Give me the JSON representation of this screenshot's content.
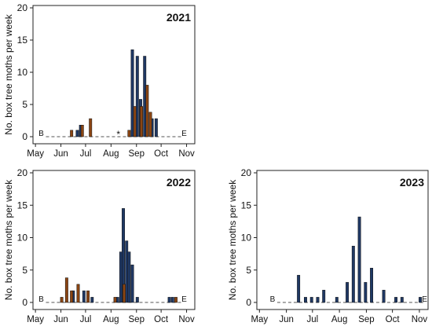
{
  "chart_data": [
    {
      "type": "bar",
      "title": "2021",
      "ylabel": "No. box tree moths per week",
      "xlabel": "",
      "ylim": [
        0,
        20
      ],
      "yticks": [
        0,
        5,
        10,
        15,
        20
      ],
      "xticks": [
        {
          "label": "May",
          "day": 121
        },
        {
          "label": "Jun",
          "day": 152
        },
        {
          "label": "Jul",
          "day": 182
        },
        {
          "label": "Aug",
          "day": 213
        },
        {
          "label": "Sep",
          "day": 244
        },
        {
          "label": "Oct",
          "day": 274
        },
        {
          "label": "Nov",
          "day": 305
        }
      ],
      "xlim": [
        118,
        315
      ],
      "start_marker": {
        "label": "B",
        "day": 128
      },
      "end_marker": {
        "label": "E",
        "day": 302
      },
      "asterisk_day": 222,
      "grid": false,
      "series": [
        {
          "color": "#1f3864",
          "points": [
            {
              "day": 172,
              "value": 1
            },
            {
              "day": 176,
              "value": 1.8
            },
            {
              "day": 239,
              "value": 13.5
            },
            {
              "day": 245,
              "value": 12.5
            },
            {
              "day": 249,
              "value": 5.8
            },
            {
              "day": 254,
              "value": 12.5
            },
            {
              "day": 263,
              "value": 2.8
            },
            {
              "day": 268,
              "value": 2.8
            }
          ]
        },
        {
          "color": "#8b4513",
          "points": [
            {
              "day": 165,
              "value": 1
            },
            {
              "day": 178,
              "value": 1.8
            },
            {
              "day": 188,
              "value": 2.8
            },
            {
              "day": 235,
              "value": 1
            },
            {
              "day": 242,
              "value": 4.7
            },
            {
              "day": 250,
              "value": 4.7
            },
            {
              "day": 257,
              "value": 8
            },
            {
              "day": 261,
              "value": 3.8
            }
          ]
        }
      ]
    },
    {
      "type": "bar",
      "title": "2022",
      "ylabel": "No. box tree moths per week",
      "xlabel": "",
      "ylim": [
        0,
        20
      ],
      "yticks": [
        0,
        5,
        10,
        15,
        20
      ],
      "xticks": [
        {
          "label": "May",
          "day": 121
        },
        {
          "label": "Jun",
          "day": 152
        },
        {
          "label": "Jul",
          "day": 182
        },
        {
          "label": "Aug",
          "day": 213
        },
        {
          "label": "Sep",
          "day": 244
        },
        {
          "label": "Oct",
          "day": 274
        },
        {
          "label": "Nov",
          "day": 305
        }
      ],
      "xlim": [
        118,
        315
      ],
      "start_marker": {
        "label": "B",
        "day": 128
      },
      "end_marker": {
        "label": "E",
        "day": 302
      },
      "grid": false,
      "series": [
        {
          "color": "#1f3864",
          "points": [
            {
              "day": 167,
              "value": 1.8
            },
            {
              "day": 180,
              "value": 1.8
            },
            {
              "day": 190,
              "value": 0.8
            },
            {
              "day": 221,
              "value": 0.8
            },
            {
              "day": 225,
              "value": 7.8
            },
            {
              "day": 228,
              "value": 14.5
            },
            {
              "day": 232,
              "value": 9.5
            },
            {
              "day": 235,
              "value": 7.8
            },
            {
              "day": 239,
              "value": 5.8
            },
            {
              "day": 245,
              "value": 0.8
            },
            {
              "day": 284,
              "value": 0.8
            },
            {
              "day": 288,
              "value": 0.8
            }
          ]
        },
        {
          "color": "#8b4513",
          "points": [
            {
              "day": 153,
              "value": 0.8
            },
            {
              "day": 159,
              "value": 3.8
            },
            {
              "day": 165,
              "value": 1.8
            },
            {
              "day": 173,
              "value": 2.8
            },
            {
              "day": 185,
              "value": 1.8
            },
            {
              "day": 218,
              "value": 0.8
            },
            {
              "day": 229,
              "value": 2.8
            },
            {
              "day": 292,
              "value": 0.8
            }
          ]
        }
      ]
    },
    {
      "type": "bar",
      "title": "2023",
      "ylabel": "No. box tree moths per week",
      "xlabel": "",
      "ylim": [
        0,
        20
      ],
      "yticks": [
        0,
        5,
        10,
        15,
        20
      ],
      "xticks": [
        {
          "label": "May",
          "day": 121
        },
        {
          "label": "Jun",
          "day": 152
        },
        {
          "label": "Jul",
          "day": 182
        },
        {
          "label": "Aug",
          "day": 213
        },
        {
          "label": "Sep",
          "day": 244
        },
        {
          "label": "Oct",
          "day": 274
        },
        {
          "label": "Nov",
          "day": 305
        }
      ],
      "xlim": [
        118,
        315
      ],
      "start_marker": {
        "label": "B",
        "day": 136
      },
      "end_marker": {
        "label": "E",
        "day": 311
      },
      "grid": false,
      "series": [
        {
          "color": "#1f3864",
          "points": [
            {
              "day": 166,
              "value": 4.2
            },
            {
              "day": 174,
              "value": 0.8
            },
            {
              "day": 181,
              "value": 0.8
            },
            {
              "day": 188,
              "value": 0.8
            },
            {
              "day": 195,
              "value": 1.9
            },
            {
              "day": 210,
              "value": 0.8
            },
            {
              "day": 222,
              "value": 3.1
            },
            {
              "day": 229,
              "value": 8.7
            },
            {
              "day": 236,
              "value": 13.2
            },
            {
              "day": 243,
              "value": 3.1
            },
            {
              "day": 250,
              "value": 5.3
            },
            {
              "day": 264,
              "value": 1.9
            },
            {
              "day": 278,
              "value": 0.8
            },
            {
              "day": 285,
              "value": 0.8
            },
            {
              "day": 306,
              "value": 0.8
            }
          ]
        }
      ]
    }
  ]
}
